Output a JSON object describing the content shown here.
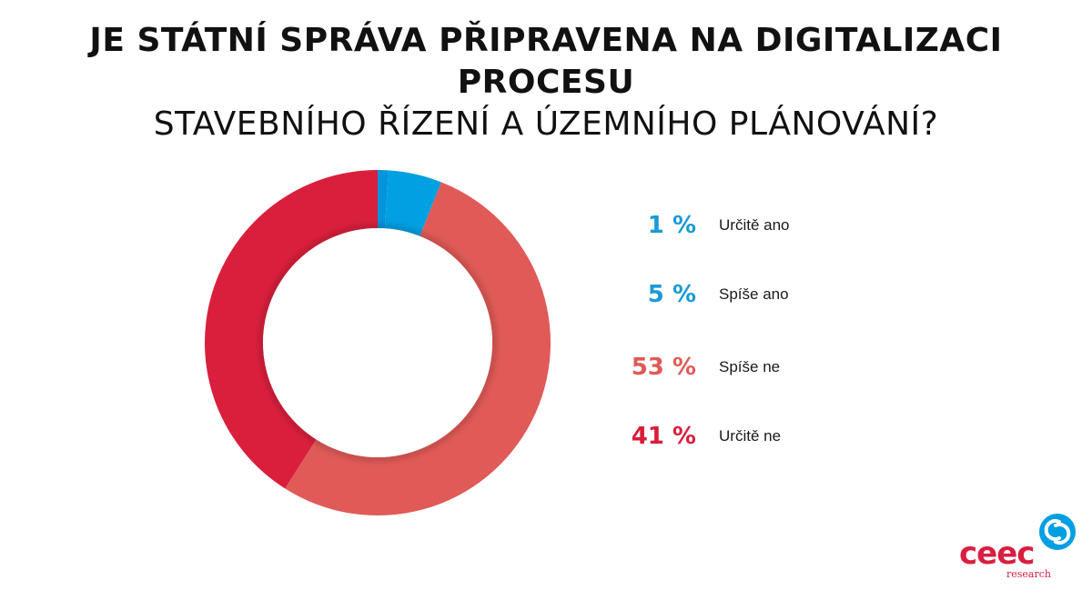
{
  "header": {
    "title_line1": "JE STÁTNÍ SPRÁVA PŘIPRAVENA NA DIGITALIZACI PROCESU",
    "title_line2": "STAVEBNÍHO ŘÍZENÍ A ÚZEMNÍHO PLÁNOVÁNÍ?"
  },
  "chart_data": {
    "type": "pie",
    "variant": "donut",
    "categories": [
      "Určitě ano",
      "Spíše ano",
      "Spíše ne",
      "Určitě ne"
    ],
    "values": [
      1,
      5,
      53,
      41
    ],
    "unit": "%",
    "colors": [
      "#0095da",
      "#00a0e2",
      "#e05a57",
      "#da1f3d"
    ],
    "legend_placement": "right",
    "start_angle": "top",
    "direction": "clockwise"
  },
  "legend": [
    {
      "pct": "1 %",
      "label": "Určitě ano",
      "color": "#1a9ad6"
    },
    {
      "pct": "5 %",
      "label": "Spíše ano",
      "color": "#1a9ad6"
    },
    {
      "pct": "53 %",
      "label": "Spíše ne",
      "color": "#e05a57"
    },
    {
      "pct": "41 %",
      "label": "Určitě ne",
      "color": "#d81e3b"
    }
  ],
  "logo": {
    "text": "ceec",
    "subtext": "research",
    "text_color": "#d91e41",
    "mark_color": "#009fe3",
    "mark_icon": "ceec-logo-mark-icon"
  }
}
